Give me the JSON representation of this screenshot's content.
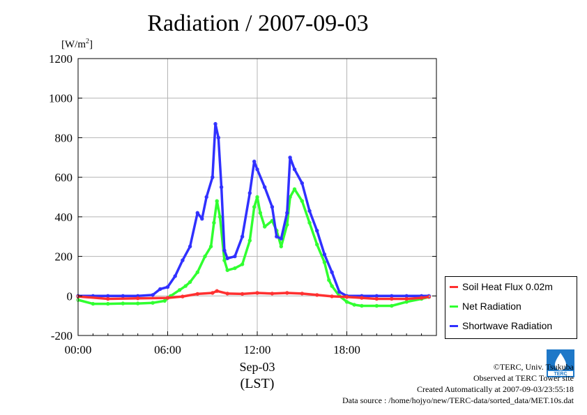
{
  "header": {
    "title": "Radiation / 2007-09-03"
  },
  "unit": {
    "prefix": "[W/m",
    "sup": "2",
    "suffix": "]"
  },
  "x_axis": {
    "date_label": "Sep-03",
    "tz_label": "(LST)"
  },
  "chart_data": {
    "type": "scatter",
    "title": "Radiation / 2007-09-03",
    "ylabel": "[W/m2]",
    "xlabel": "Sep-03 (LST)",
    "ylim": [
      -200,
      1200
    ],
    "xlim": [
      0,
      24
    ],
    "yticks": [
      -200,
      0,
      200,
      400,
      600,
      800,
      1000,
      1200
    ],
    "xticks": [
      0,
      6,
      12,
      18
    ],
    "xtick_labels": [
      "00:00",
      "06:00",
      "12:00",
      "18:00"
    ],
    "grid": true,
    "legend_position": "right-bottom",
    "series": [
      {
        "name": "Soil Heat Flux 0.02m",
        "color": "#ff3030",
        "points": [
          [
            0,
            -3
          ],
          [
            2,
            -15
          ],
          [
            4,
            -12
          ],
          [
            6,
            -10
          ],
          [
            7,
            -3
          ],
          [
            8,
            10
          ],
          [
            9,
            15
          ],
          [
            9.3,
            25
          ],
          [
            10,
            12
          ],
          [
            11,
            10
          ],
          [
            12,
            15
          ],
          [
            13,
            12
          ],
          [
            14,
            15
          ],
          [
            15,
            12
          ],
          [
            16,
            5
          ],
          [
            17,
            -2
          ],
          [
            18,
            -5
          ],
          [
            19,
            -10
          ],
          [
            20,
            -15
          ],
          [
            21,
            -15
          ],
          [
            22,
            -15
          ],
          [
            23,
            -10
          ],
          [
            23.5,
            -5
          ]
        ]
      },
      {
        "name": "Net Radiation",
        "color": "#30ff30",
        "points": [
          [
            0,
            -20
          ],
          [
            1,
            -40
          ],
          [
            2,
            -40
          ],
          [
            3,
            -38
          ],
          [
            4,
            -38
          ],
          [
            5,
            -35
          ],
          [
            5.8,
            -25
          ],
          [
            6.2,
            0
          ],
          [
            6.8,
            30
          ],
          [
            7.2,
            50
          ],
          [
            7.5,
            70
          ],
          [
            8,
            120
          ],
          [
            8.5,
            200
          ],
          [
            8.9,
            250
          ],
          [
            9.1,
            370
          ],
          [
            9.3,
            480
          ],
          [
            9.5,
            400
          ],
          [
            9.8,
            180
          ],
          [
            10,
            130
          ],
          [
            10.5,
            140
          ],
          [
            11,
            160
          ],
          [
            11.5,
            280
          ],
          [
            11.8,
            450
          ],
          [
            12,
            500
          ],
          [
            12.2,
            420
          ],
          [
            12.5,
            350
          ],
          [
            13,
            380
          ],
          [
            13.3,
            330
          ],
          [
            13.6,
            250
          ],
          [
            14,
            360
          ],
          [
            14.2,
            500
          ],
          [
            14.5,
            540
          ],
          [
            15,
            480
          ],
          [
            15.5,
            370
          ],
          [
            16,
            260
          ],
          [
            16.5,
            170
          ],
          [
            16.8,
            80
          ],
          [
            17,
            50
          ],
          [
            17.5,
            0
          ],
          [
            18,
            -30
          ],
          [
            18.5,
            -45
          ],
          [
            19,
            -50
          ],
          [
            20,
            -50
          ],
          [
            21,
            -50
          ],
          [
            22,
            -30
          ],
          [
            23,
            -15
          ],
          [
            23.5,
            -5
          ]
        ]
      },
      {
        "name": "Shortwave Radiation",
        "color": "#3030ff",
        "points": [
          [
            0,
            0
          ],
          [
            1,
            0
          ],
          [
            2,
            0
          ],
          [
            3,
            0
          ],
          [
            4,
            0
          ],
          [
            5,
            5
          ],
          [
            5.5,
            35
          ],
          [
            6,
            45
          ],
          [
            6.5,
            100
          ],
          [
            7,
            180
          ],
          [
            7.5,
            250
          ],
          [
            8,
            420
          ],
          [
            8.3,
            390
          ],
          [
            8.6,
            500
          ],
          [
            9,
            600
          ],
          [
            9.2,
            870
          ],
          [
            9.4,
            800
          ],
          [
            9.6,
            550
          ],
          [
            9.8,
            230
          ],
          [
            10,
            190
          ],
          [
            10.5,
            200
          ],
          [
            11,
            300
          ],
          [
            11.5,
            520
          ],
          [
            11.8,
            680
          ],
          [
            12,
            640
          ],
          [
            12.5,
            550
          ],
          [
            13,
            450
          ],
          [
            13.3,
            300
          ],
          [
            13.6,
            290
          ],
          [
            14,
            420
          ],
          [
            14.2,
            700
          ],
          [
            14.5,
            640
          ],
          [
            15,
            570
          ],
          [
            15.5,
            430
          ],
          [
            16,
            330
          ],
          [
            16.5,
            210
          ],
          [
            17,
            120
          ],
          [
            17.5,
            20
          ],
          [
            18,
            0
          ],
          [
            19,
            0
          ],
          [
            20,
            0
          ],
          [
            21,
            0
          ],
          [
            22,
            0
          ],
          [
            23,
            0
          ],
          [
            23.5,
            0
          ]
        ]
      }
    ]
  },
  "legend": {
    "items": [
      {
        "label": "Soil Heat Flux 0.02m",
        "color": "#ff3030"
      },
      {
        "label": "Net Radiation",
        "color": "#30ff30"
      },
      {
        "label": "Shortwave Radiation",
        "color": "#3030ff"
      }
    ]
  },
  "credits": {
    "line1": "©TERC, Univ. Tsukuba",
    "line2": "Observed at TERC Tower site",
    "line3": "Created Automatically at 2007-09-03/23:55:18",
    "line4": "Data source : /home/hojyo/new/TERC-data/sorted_data/MET.10s.dat",
    "logo_text": "TERC"
  }
}
